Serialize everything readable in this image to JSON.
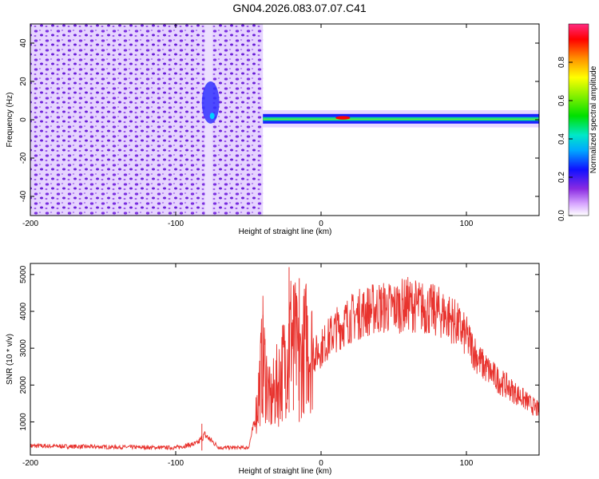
{
  "title": "GN04.2026.083.07.07.C41",
  "chart_data": [
    {
      "type": "heatmap",
      "xlabel": "Height of straight line (km)",
      "ylabel": "Frequency (Hz)",
      "xlim": [
        -200,
        150
      ],
      "ylim": [
        -50,
        50
      ],
      "x_ticks": [
        -200,
        -100,
        0,
        100
      ],
      "x_tick_labels": [
        "-200",
        "-100",
        "0",
        "100"
      ],
      "y_ticks": [
        -40,
        -20,
        0,
        20,
        40
      ],
      "y_tick_labels": [
        "-40",
        "-20",
        "0",
        "20",
        "40"
      ],
      "colorbar": {
        "label": "Normalized spectral amplitude",
        "range": [
          0,
          1
        ],
        "ticks": [
          0,
          0.2,
          0.4,
          0.6,
          0.8
        ],
        "tick_labels": [
          "0.0",
          "0.2",
          "0.4",
          "0.6",
          "0.8"
        ],
        "colormap": "rainbow"
      },
      "regions": [
        {
          "x_range": [
            -200,
            -40
          ],
          "freq_range": [
            -50,
            50
          ],
          "amplitude": 0.05,
          "pattern": "broadband noise"
        },
        {
          "x_range": [
            -80,
            -75
          ],
          "freq_range": [
            -50,
            50
          ],
          "amplitude": 0.0,
          "pattern": "gap"
        },
        {
          "x_range": [
            -82,
            -70
          ],
          "freq_range": [
            -2,
            20
          ],
          "amplitude": 0.25,
          "pattern": "blob"
        },
        {
          "x_range": [
            -40,
            150
          ],
          "freq_range": [
            -2,
            3
          ],
          "amplitude": 0.45,
          "pattern": "tone"
        },
        {
          "x_range": [
            10,
            20
          ],
          "freq_range": [
            0,
            2
          ],
          "amplitude": 0.9,
          "pattern": "peak"
        }
      ],
      "grid": false
    },
    {
      "type": "line",
      "xlabel": "Height of straight line (km)",
      "ylabel": "SNR (10 * v/v)",
      "xlim": [
        -200,
        150
      ],
      "ylim": [
        100,
        5300
      ],
      "x_ticks": [
        -200,
        -100,
        0,
        100
      ],
      "x_tick_labels": [
        "-200",
        "-100",
        "0",
        "100"
      ],
      "y_ticks": [
        1000,
        2000,
        3000,
        4000,
        5000
      ],
      "y_tick_labels": [
        "1000",
        "2000",
        "3000",
        "4000",
        "5000"
      ],
      "color": "#e8332e",
      "envelope_x": [
        -200,
        -150,
        -100,
        -85,
        -80,
        -70,
        -50,
        -45,
        -40,
        -35,
        -30,
        -25,
        -20,
        -15,
        -10,
        -5,
        0,
        10,
        20,
        30,
        40,
        50,
        60,
        70,
        80,
        90,
        100,
        110,
        120,
        130,
        140,
        150
      ],
      "envelope_y": [
        350,
        320,
        300,
        420,
        650,
        300,
        300,
        1100,
        2800,
        1500,
        2000,
        2600,
        3500,
        2500,
        3200,
        2800,
        3000,
        3500,
        3800,
        4000,
        4100,
        4100,
        4200,
        4100,
        4000,
        3800,
        3300,
        2600,
        2200,
        1900,
        1600,
        1300
      ],
      "spikes": [
        {
          "x": -40,
          "y": 3900
        },
        {
          "x": -22,
          "y": 5200
        },
        {
          "x": -19,
          "y": 4700
        },
        {
          "x": -15,
          "y": 4900
        },
        {
          "x": -82,
          "y": 950
        }
      ],
      "grid": false
    }
  ]
}
